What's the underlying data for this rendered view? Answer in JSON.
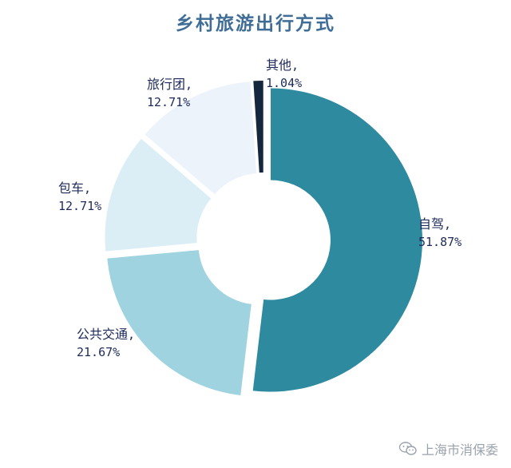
{
  "chart_data": {
    "type": "pie",
    "title": "乡村旅游出行方式",
    "donut": true,
    "slices": [
      {
        "label": "自驾",
        "value": 51.87,
        "display": "51.87%",
        "color": "#2e8a9e"
      },
      {
        "label": "公共交通",
        "value": 21.67,
        "display": "21.67%",
        "color": "#9fd3e0"
      },
      {
        "label": "包车",
        "value": 12.71,
        "display": "12.71%",
        "color": "#dbeef6"
      },
      {
        "label": "旅行团",
        "value": 12.71,
        "display": "12.71%",
        "color": "#edf3fb"
      },
      {
        "label": "其他",
        "value": 1.04,
        "display": "1.04%",
        "color": "#14273d"
      }
    ],
    "label_separator": ","
  },
  "watermark": {
    "text": "上海市消保委",
    "icon": "wechat-icon",
    "color": "#9aa3ad"
  }
}
